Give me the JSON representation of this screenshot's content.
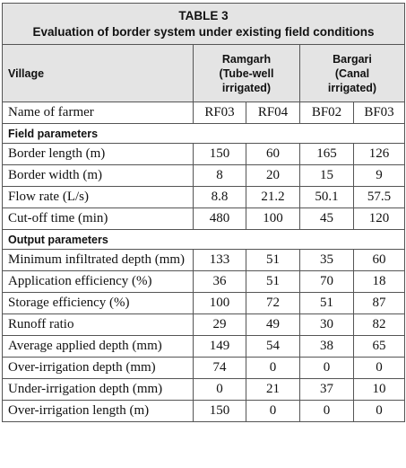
{
  "title": "TABLE 3",
  "subtitle": "Evaluation of border system under existing field conditions",
  "header": {
    "village": "Village",
    "groups": [
      {
        "lines": [
          "Ramgarh",
          "(Tube-well",
          "irrigated)"
        ]
      },
      {
        "lines": [
          "Bargari",
          "(Canal",
          "irrigated)"
        ]
      }
    ]
  },
  "farmer_row": {
    "label": "Name of farmer",
    "cells": [
      "RF03",
      "RF04",
      "BF02",
      "BF03"
    ]
  },
  "sections": [
    {
      "title": "Field parameters",
      "rows": [
        {
          "label": "Border length (m)",
          "values": [
            150,
            60,
            165,
            126
          ]
        },
        {
          "label": "Border width (m)",
          "values": [
            8,
            20,
            15,
            9
          ]
        },
        {
          "label": "Flow rate (L/s)",
          "values": [
            8.8,
            21.2,
            50.1,
            57.5
          ]
        },
        {
          "label": "Cut-off time (min)",
          "values": [
            480,
            100,
            45,
            120
          ]
        }
      ]
    },
    {
      "title": "Output parameters",
      "rows": [
        {
          "label": "Minimum infiltrated depth (mm)",
          "values": [
            133,
            51,
            35,
            60
          ]
        },
        {
          "label": "Application efficiency (%)",
          "values": [
            36,
            51,
            70,
            18
          ]
        },
        {
          "label": "Storage efficiency (%)",
          "values": [
            100,
            72,
            51,
            87
          ]
        },
        {
          "label": "Runoff ratio",
          "values": [
            29,
            49,
            30,
            82
          ]
        },
        {
          "label": "Average applied depth (mm)",
          "values": [
            149,
            54,
            38,
            65
          ]
        },
        {
          "label": "Over-irrigation depth (mm)",
          "values": [
            74,
            0,
            0,
            0
          ]
        },
        {
          "label": "Under-irrigation depth (mm)",
          "values": [
            0,
            21,
            37,
            10
          ]
        },
        {
          "label": "Over-irrigation length (m)",
          "values": [
            150,
            0,
            0,
            0
          ]
        }
      ]
    }
  ]
}
